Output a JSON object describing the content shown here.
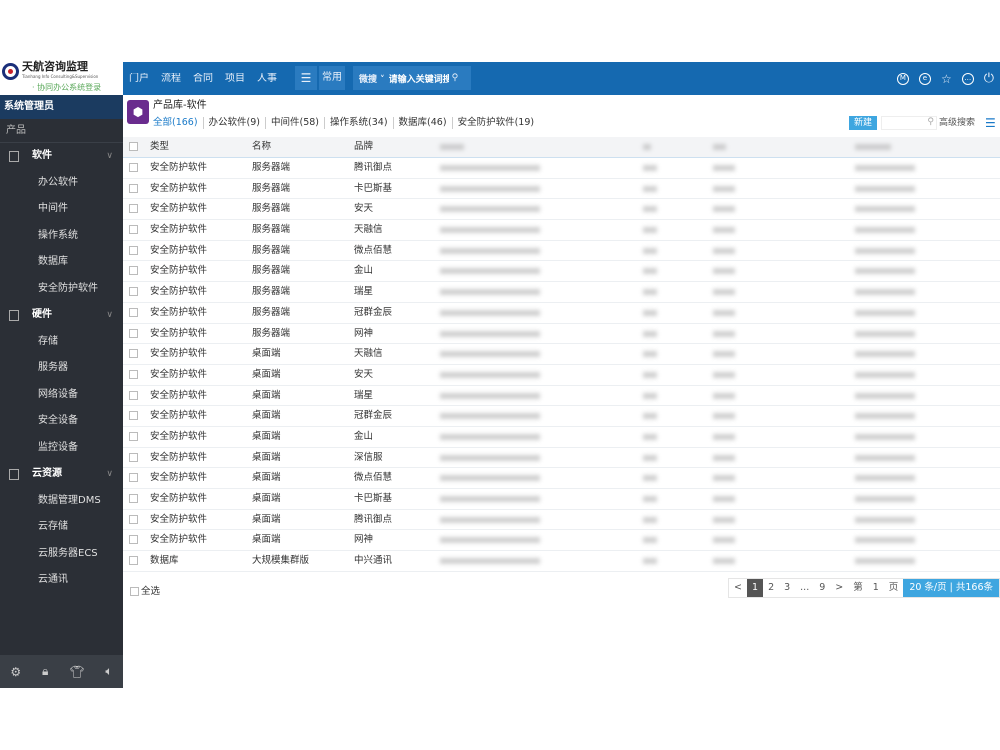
{
  "logo": {
    "name": "天航咨询监理",
    "en": "Tianhang Info Consulting&Supervision",
    "sub": "· 协同办公系统登录"
  },
  "topnav": {
    "items": [
      "门户",
      "流程",
      "合同",
      "项目",
      "人事"
    ],
    "menu_icon": "menu-icon",
    "common": "常用",
    "weisou": "微搜",
    "search_placeholder": "请输入关键词搜索",
    "right_icons": [
      "m-circle-icon",
      "e-circle-icon",
      "star-icon",
      "chat-icon",
      "power-icon"
    ]
  },
  "sidebar": {
    "user": "系统管理员",
    "section": "产品",
    "groups": [
      {
        "label": "软件",
        "items": [
          "办公软件",
          "中间件",
          "操作系统",
          "数据库",
          "安全防护软件"
        ]
      },
      {
        "label": "硬件",
        "items": [
          "存储",
          "服务器",
          "网络设备",
          "安全设备",
          "监控设备"
        ]
      },
      {
        "label": "云资源",
        "items": [
          "数据管理DMS",
          "云存储",
          "云服务器ECS",
          "云通讯"
        ]
      }
    ],
    "bottom_icons": [
      "settings-icon",
      "lock-icon",
      "shirt-icon",
      "speaker-icon"
    ]
  },
  "main": {
    "title": "产品库-软件",
    "tabs": [
      "全部(166)",
      "办公软件(9)",
      "中间件(58)",
      "操作系统(34)",
      "数据库(46)",
      "安全防护软件(19)"
    ],
    "new_label": "新建",
    "advanced_search": "高级搜索",
    "table": {
      "headers": [
        "类型",
        "名称",
        "品牌"
      ],
      "rows": [
        [
          "安全防护软件",
          "服务器端",
          "腾讯御点"
        ],
        [
          "安全防护软件",
          "服务器端",
          "卡巴斯基"
        ],
        [
          "安全防护软件",
          "服务器端",
          "安天"
        ],
        [
          "安全防护软件",
          "服务器端",
          "天融信"
        ],
        [
          "安全防护软件",
          "服务器端",
          "微点佰慧"
        ],
        [
          "安全防护软件",
          "服务器端",
          "金山"
        ],
        [
          "安全防护软件",
          "服务器端",
          "瑞星"
        ],
        [
          "安全防护软件",
          "服务器端",
          "冠群金辰"
        ],
        [
          "安全防护软件",
          "服务器端",
          "网神"
        ],
        [
          "安全防护软件",
          "桌面端",
          "天融信"
        ],
        [
          "安全防护软件",
          "桌面端",
          "安天"
        ],
        [
          "安全防护软件",
          "桌面端",
          "瑞星"
        ],
        [
          "安全防护软件",
          "桌面端",
          "冠群金辰"
        ],
        [
          "安全防护软件",
          "桌面端",
          "金山"
        ],
        [
          "安全防护软件",
          "桌面端",
          "深信服"
        ],
        [
          "安全防护软件",
          "桌面端",
          "微点佰慧"
        ],
        [
          "安全防护软件",
          "桌面端",
          "卡巴斯基"
        ],
        [
          "安全防护软件",
          "桌面端",
          "腾讯御点"
        ],
        [
          "安全防护软件",
          "桌面端",
          "网神"
        ],
        [
          "数据库",
          "大规模集群版",
          "中兴通讯"
        ]
      ]
    },
    "select_all": "全选",
    "pagination": {
      "prev": "<",
      "pages": [
        "1",
        "2",
        "3",
        "...",
        "9"
      ],
      "current": "1",
      "next": ">",
      "goto_prefix": "第",
      "goto_page": "1",
      "goto_suffix": "页",
      "per_page": "20 条/页 | 共166条"
    }
  }
}
